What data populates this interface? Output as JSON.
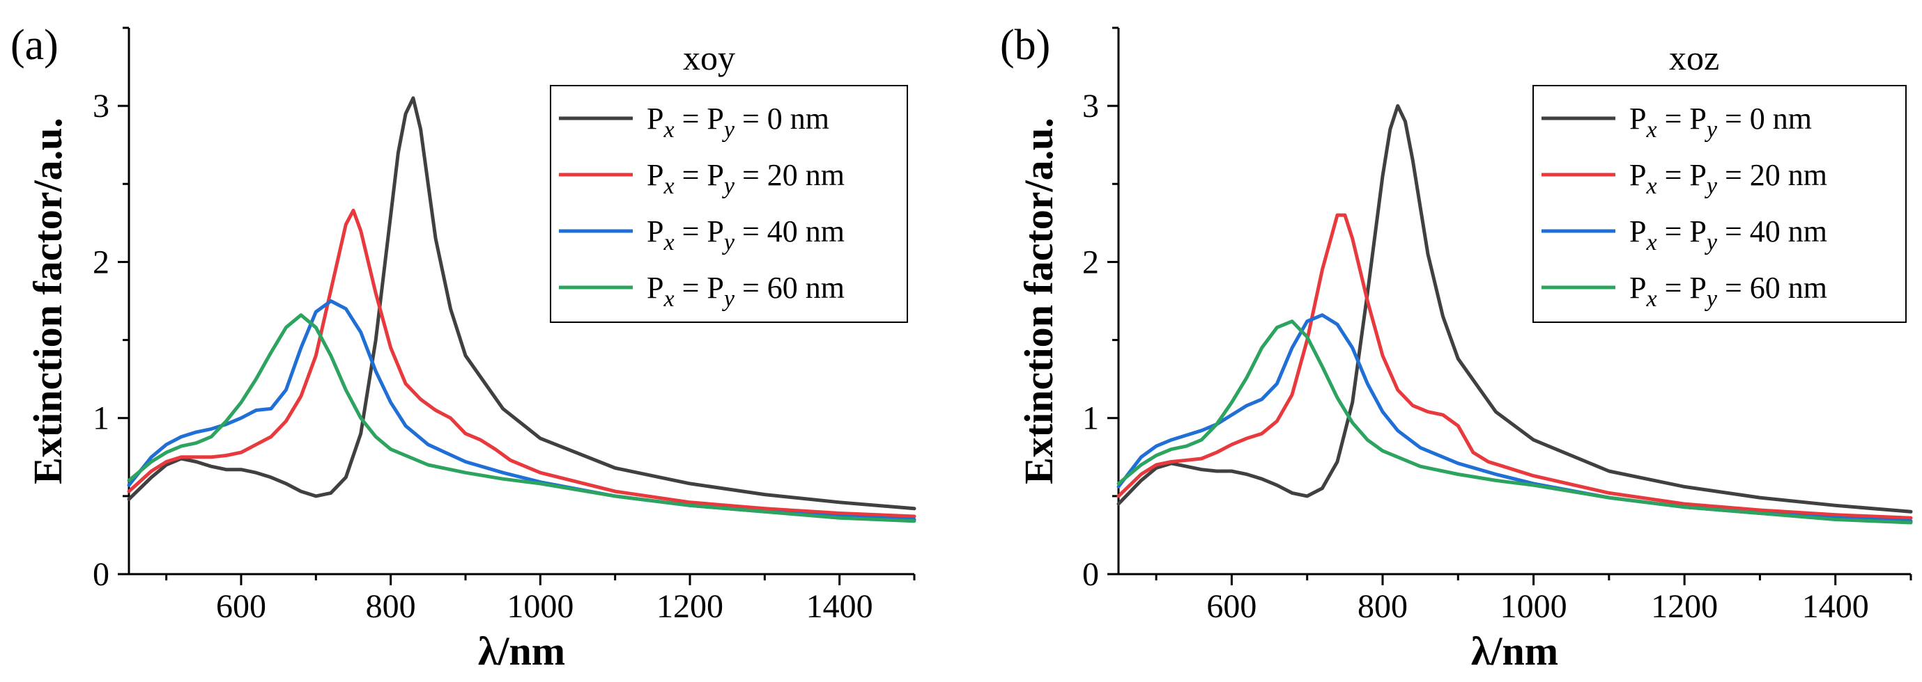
{
  "chart_data": [
    {
      "type": "line",
      "panel_label": "(a)",
      "legend_title": "xoy",
      "xlabel": "λ/nm",
      "ylabel": "Extinction factor/a.u.",
      "xlim": [
        450,
        1500
      ],
      "ylim": [
        0,
        3.5
      ],
      "xticks": [
        600,
        800,
        1000,
        1200,
        1400
      ],
      "yticks": [
        0,
        1,
        2,
        3
      ],
      "legend_position": "top-right",
      "series": [
        {
          "name": "P_x = P_y = 0 nm",
          "label_parts": [
            "P",
            "x",
            " = P",
            "y",
            " = 0 nm"
          ],
          "color": "#404040",
          "x": [
            450,
            480,
            500,
            520,
            540,
            560,
            580,
            600,
            620,
            640,
            660,
            680,
            700,
            720,
            740,
            760,
            780,
            800,
            810,
            820,
            830,
            840,
            850,
            860,
            880,
            900,
            950,
            1000,
            1100,
            1200,
            1300,
            1400,
            1500
          ],
          "y": [
            0.48,
            0.62,
            0.7,
            0.74,
            0.72,
            0.69,
            0.67,
            0.67,
            0.65,
            0.62,
            0.58,
            0.53,
            0.5,
            0.52,
            0.62,
            0.9,
            1.5,
            2.3,
            2.7,
            2.95,
            3.05,
            2.85,
            2.5,
            2.15,
            1.7,
            1.4,
            1.06,
            0.87,
            0.68,
            0.58,
            0.51,
            0.46,
            0.42
          ]
        },
        {
          "name": "P_x = P_y = 20 nm",
          "label_parts": [
            "P",
            "x",
            " = P",
            "y",
            " = 20 nm"
          ],
          "color": "#e8393d",
          "x": [
            450,
            480,
            500,
            520,
            540,
            560,
            580,
            600,
            620,
            640,
            660,
            680,
            700,
            720,
            740,
            750,
            760,
            780,
            800,
            820,
            840,
            860,
            880,
            900,
            920,
            940,
            960,
            1000,
            1100,
            1200,
            1300,
            1400,
            1500
          ],
          "y": [
            0.53,
            0.66,
            0.72,
            0.75,
            0.75,
            0.75,
            0.76,
            0.78,
            0.83,
            0.88,
            0.98,
            1.14,
            1.4,
            1.82,
            2.24,
            2.33,
            2.2,
            1.8,
            1.45,
            1.22,
            1.12,
            1.05,
            1.0,
            0.9,
            0.86,
            0.8,
            0.73,
            0.65,
            0.53,
            0.46,
            0.42,
            0.39,
            0.37
          ]
        },
        {
          "name": "P_x = P_y = 40 nm",
          "label_parts": [
            "P",
            "x",
            " = P",
            "y",
            " = 40 nm"
          ],
          "color": "#1f6fd6",
          "x": [
            450,
            480,
            500,
            520,
            540,
            560,
            580,
            600,
            620,
            640,
            660,
            680,
            700,
            720,
            740,
            760,
            780,
            800,
            820,
            850,
            900,
            950,
            1000,
            1100,
            1200,
            1300,
            1400,
            1500
          ],
          "y": [
            0.57,
            0.75,
            0.83,
            0.88,
            0.91,
            0.93,
            0.96,
            1.0,
            1.05,
            1.06,
            1.18,
            1.45,
            1.68,
            1.75,
            1.7,
            1.55,
            1.3,
            1.1,
            0.95,
            0.83,
            0.72,
            0.65,
            0.59,
            0.5,
            0.44,
            0.4,
            0.37,
            0.35
          ]
        },
        {
          "name": "P_x = P_y = 60 nm",
          "label_parts": [
            "P",
            "x",
            " = P",
            "y",
            " = 60 nm"
          ],
          "color": "#2ca35e",
          "x": [
            450,
            480,
            500,
            520,
            540,
            560,
            580,
            600,
            620,
            640,
            660,
            680,
            700,
            720,
            740,
            760,
            780,
            800,
            850,
            900,
            950,
            1000,
            1100,
            1200,
            1300,
            1400,
            1500
          ],
          "y": [
            0.6,
            0.72,
            0.78,
            0.82,
            0.84,
            0.88,
            0.98,
            1.1,
            1.25,
            1.42,
            1.58,
            1.66,
            1.58,
            1.4,
            1.18,
            1.0,
            0.88,
            0.8,
            0.7,
            0.65,
            0.61,
            0.58,
            0.5,
            0.44,
            0.4,
            0.36,
            0.34
          ]
        }
      ]
    },
    {
      "type": "line",
      "panel_label": "(b)",
      "legend_title": "xoz",
      "xlabel": "λ/nm",
      "ylabel": "Extinction factor/a.u.",
      "xlim": [
        450,
        1500
      ],
      "ylim": [
        0,
        3.5
      ],
      "xticks": [
        600,
        800,
        1000,
        1200,
        1400
      ],
      "yticks": [
        0,
        1,
        2,
        3
      ],
      "legend_position": "top-right",
      "series": [
        {
          "name": "P_x = P_y = 0 nm",
          "label_parts": [
            "P",
            "x",
            " = P",
            "y",
            " = 0 nm"
          ],
          "color": "#404040",
          "x": [
            450,
            480,
            500,
            520,
            540,
            560,
            580,
            600,
            620,
            640,
            660,
            680,
            700,
            720,
            740,
            760,
            780,
            800,
            810,
            820,
            830,
            840,
            850,
            860,
            880,
            900,
            950,
            1000,
            1100,
            1200,
            1300,
            1400,
            1500
          ],
          "y": [
            0.45,
            0.6,
            0.68,
            0.71,
            0.69,
            0.67,
            0.66,
            0.66,
            0.64,
            0.61,
            0.57,
            0.52,
            0.5,
            0.55,
            0.72,
            1.1,
            1.8,
            2.55,
            2.85,
            3.0,
            2.9,
            2.65,
            2.35,
            2.05,
            1.65,
            1.38,
            1.04,
            0.86,
            0.66,
            0.56,
            0.49,
            0.44,
            0.4
          ]
        },
        {
          "name": "P_x = P_y = 20 nm",
          "label_parts": [
            "P",
            "x",
            " = P",
            "y",
            " = 20 nm"
          ],
          "color": "#e8393d",
          "x": [
            450,
            480,
            500,
            520,
            540,
            560,
            580,
            600,
            620,
            640,
            660,
            680,
            700,
            720,
            740,
            750,
            760,
            780,
            800,
            820,
            840,
            860,
            880,
            900,
            920,
            940,
            960,
            1000,
            1100,
            1200,
            1300,
            1400,
            1500
          ],
          "y": [
            0.5,
            0.64,
            0.7,
            0.72,
            0.73,
            0.74,
            0.78,
            0.83,
            0.87,
            0.9,
            0.98,
            1.15,
            1.5,
            1.95,
            2.3,
            2.3,
            2.15,
            1.75,
            1.4,
            1.18,
            1.08,
            1.04,
            1.02,
            0.95,
            0.78,
            0.72,
            0.69,
            0.63,
            0.52,
            0.45,
            0.41,
            0.38,
            0.36
          ]
        },
        {
          "name": "P_x = P_y = 40 nm",
          "label_parts": [
            "P",
            "x",
            " = P",
            "y",
            " = 40 nm"
          ],
          "color": "#1f6fd6",
          "x": [
            450,
            480,
            500,
            520,
            540,
            560,
            580,
            600,
            620,
            640,
            660,
            680,
            700,
            720,
            740,
            760,
            780,
            800,
            820,
            850,
            900,
            950,
            1000,
            1100,
            1200,
            1300,
            1400,
            1500
          ],
          "y": [
            0.56,
            0.75,
            0.82,
            0.86,
            0.89,
            0.92,
            0.96,
            1.02,
            1.08,
            1.12,
            1.22,
            1.45,
            1.62,
            1.66,
            1.6,
            1.45,
            1.22,
            1.04,
            0.92,
            0.81,
            0.71,
            0.64,
            0.58,
            0.49,
            0.43,
            0.39,
            0.36,
            0.34
          ]
        },
        {
          "name": "P_x = P_y = 60 nm",
          "label_parts": [
            "P",
            "x",
            " = P",
            "y",
            " = 60 nm"
          ],
          "color": "#2ca35e",
          "x": [
            450,
            480,
            500,
            520,
            540,
            560,
            580,
            600,
            620,
            640,
            660,
            680,
            700,
            720,
            740,
            760,
            780,
            800,
            850,
            900,
            950,
            1000,
            1100,
            1200,
            1300,
            1400,
            1500
          ],
          "y": [
            0.58,
            0.7,
            0.76,
            0.8,
            0.82,
            0.86,
            0.96,
            1.1,
            1.26,
            1.45,
            1.58,
            1.62,
            1.52,
            1.33,
            1.13,
            0.97,
            0.86,
            0.79,
            0.69,
            0.64,
            0.6,
            0.57,
            0.49,
            0.43,
            0.39,
            0.35,
            0.33
          ]
        }
      ]
    }
  ]
}
